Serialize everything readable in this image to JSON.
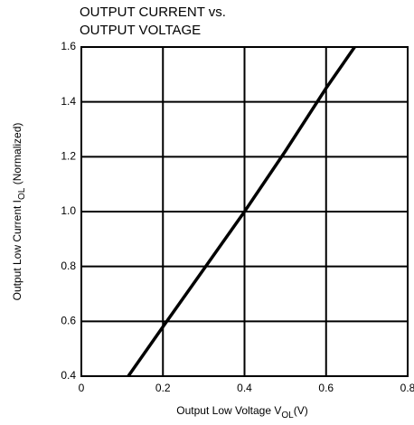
{
  "chart_data": {
    "type": "line",
    "title": [
      "OUTPUT CURRENT vs.",
      "OUTPUT VOLTAGE"
    ],
    "xlabel": [
      "Output Low Voltage V",
      "OL",
      "(V)"
    ],
    "ylabel": [
      "Output Low Current I",
      "OL",
      " (Normalized)"
    ],
    "x": [
      0.115,
      0.2,
      0.3,
      0.4,
      0.5,
      0.6,
      0.67
    ],
    "series": [
      {
        "color": "#000000",
        "values": [
          0.4,
          0.58,
          0.79,
          1.0,
          1.22,
          1.45,
          1.6
        ]
      }
    ],
    "xlim": [
      0,
      0.8
    ],
    "xticks": [
      0,
      0.2,
      0.4,
      0.6,
      0.8
    ],
    "ylim": [
      0.4,
      1.6
    ],
    "yticks": [
      0.4,
      0.6,
      0.8,
      {
        "value": 1,
        "label": "1.0"
      },
      1.2,
      1.4,
      1.6
    ],
    "grid": true
  }
}
